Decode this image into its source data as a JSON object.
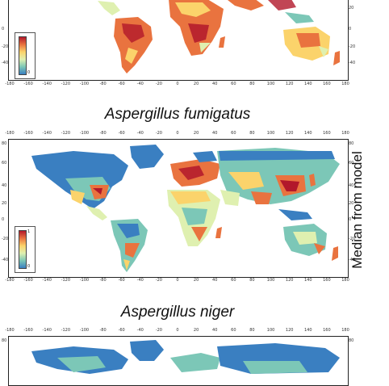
{
  "titles": {
    "fumigatus": "Aspergillus fumigatus",
    "niger": "Aspergillus niger"
  },
  "side_label": "Median from model",
  "lon_ticks": [
    "-180",
    "-160",
    "-140",
    "-120",
    "-100",
    "-80",
    "-60",
    "-40",
    "-20",
    "0",
    "20",
    "40",
    "60",
    "80",
    "100",
    "120",
    "140",
    "160",
    "180"
  ],
  "lat_ticks_top": [
    "20",
    "0",
    "-20",
    "-40"
  ],
  "lat_ticks_mid": [
    "80",
    "60",
    "40",
    "20",
    "0",
    "-20",
    "-40"
  ],
  "lat_ticks_bottom": [
    "80"
  ],
  "legend_top": {
    "max": "1",
    "min": "0"
  },
  "legend_mid": {
    "max": "1",
    "min": "0"
  },
  "colors": {
    "high": "#b2182b",
    "mid_high": "#e9733f",
    "mid": "#fbd36b",
    "low_mid": "#dff0b0",
    "low": "#7cc7b7",
    "lowest": "#3a7fc1",
    "ocean": "#ffffff"
  }
}
